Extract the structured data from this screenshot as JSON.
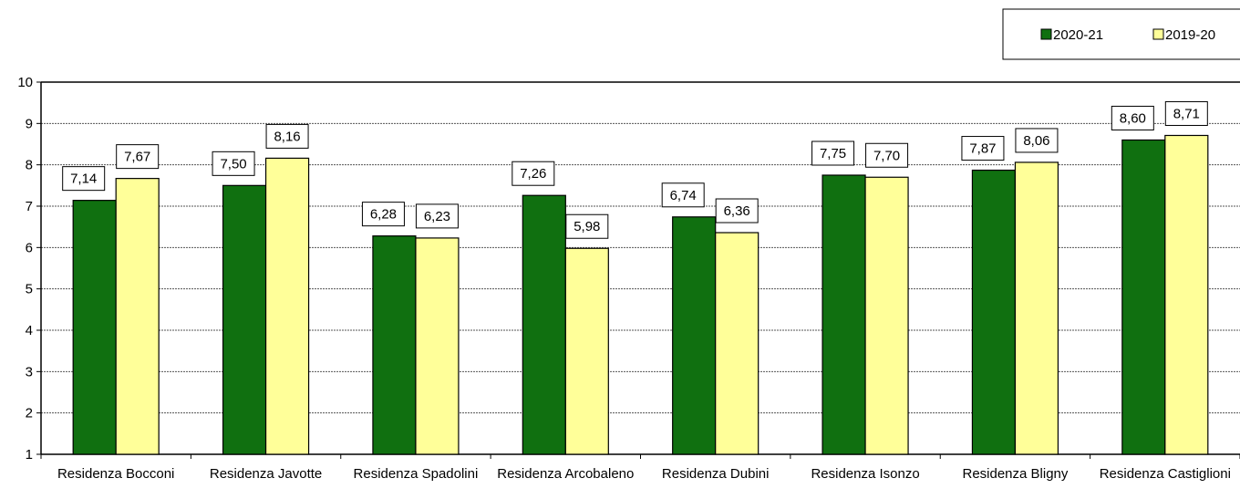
{
  "chart_data": {
    "type": "bar",
    "categories": [
      "Residenza Bocconi",
      "Residenza Javotte",
      "Residenza Spadolini",
      "Residenza Arcobaleno",
      "Residenza Dubini",
      "Residenza Isonzo",
      "Residenza Bligny",
      "Residenza Castiglioni"
    ],
    "series": [
      {
        "name": "2020-21",
        "color": "#107010",
        "values": [
          7.14,
          7.5,
          6.28,
          7.26,
          6.74,
          7.75,
          7.87,
          8.6
        ],
        "labels": [
          "7,14",
          "7,50",
          "6,28",
          "7,26",
          "6,74",
          "7,75",
          "7,87",
          "8,60"
        ]
      },
      {
        "name": "2019-20",
        "color": "#FFFF99",
        "values": [
          7.67,
          8.16,
          6.23,
          5.98,
          6.36,
          7.7,
          8.06,
          8.71
        ],
        "labels": [
          "7,67",
          "8,16",
          "6,23",
          "5,98",
          "6,36",
          "7,70",
          "8,06",
          "8,71"
        ]
      }
    ],
    "yticks": [
      "1",
      "2",
      "3",
      "4",
      "5",
      "6",
      "7",
      "8",
      "9",
      "10"
    ],
    "ylim": [
      1,
      10
    ],
    "grid": true,
    "legend_position": "top-right",
    "title": "",
    "xlabel": "",
    "ylabel": ""
  }
}
